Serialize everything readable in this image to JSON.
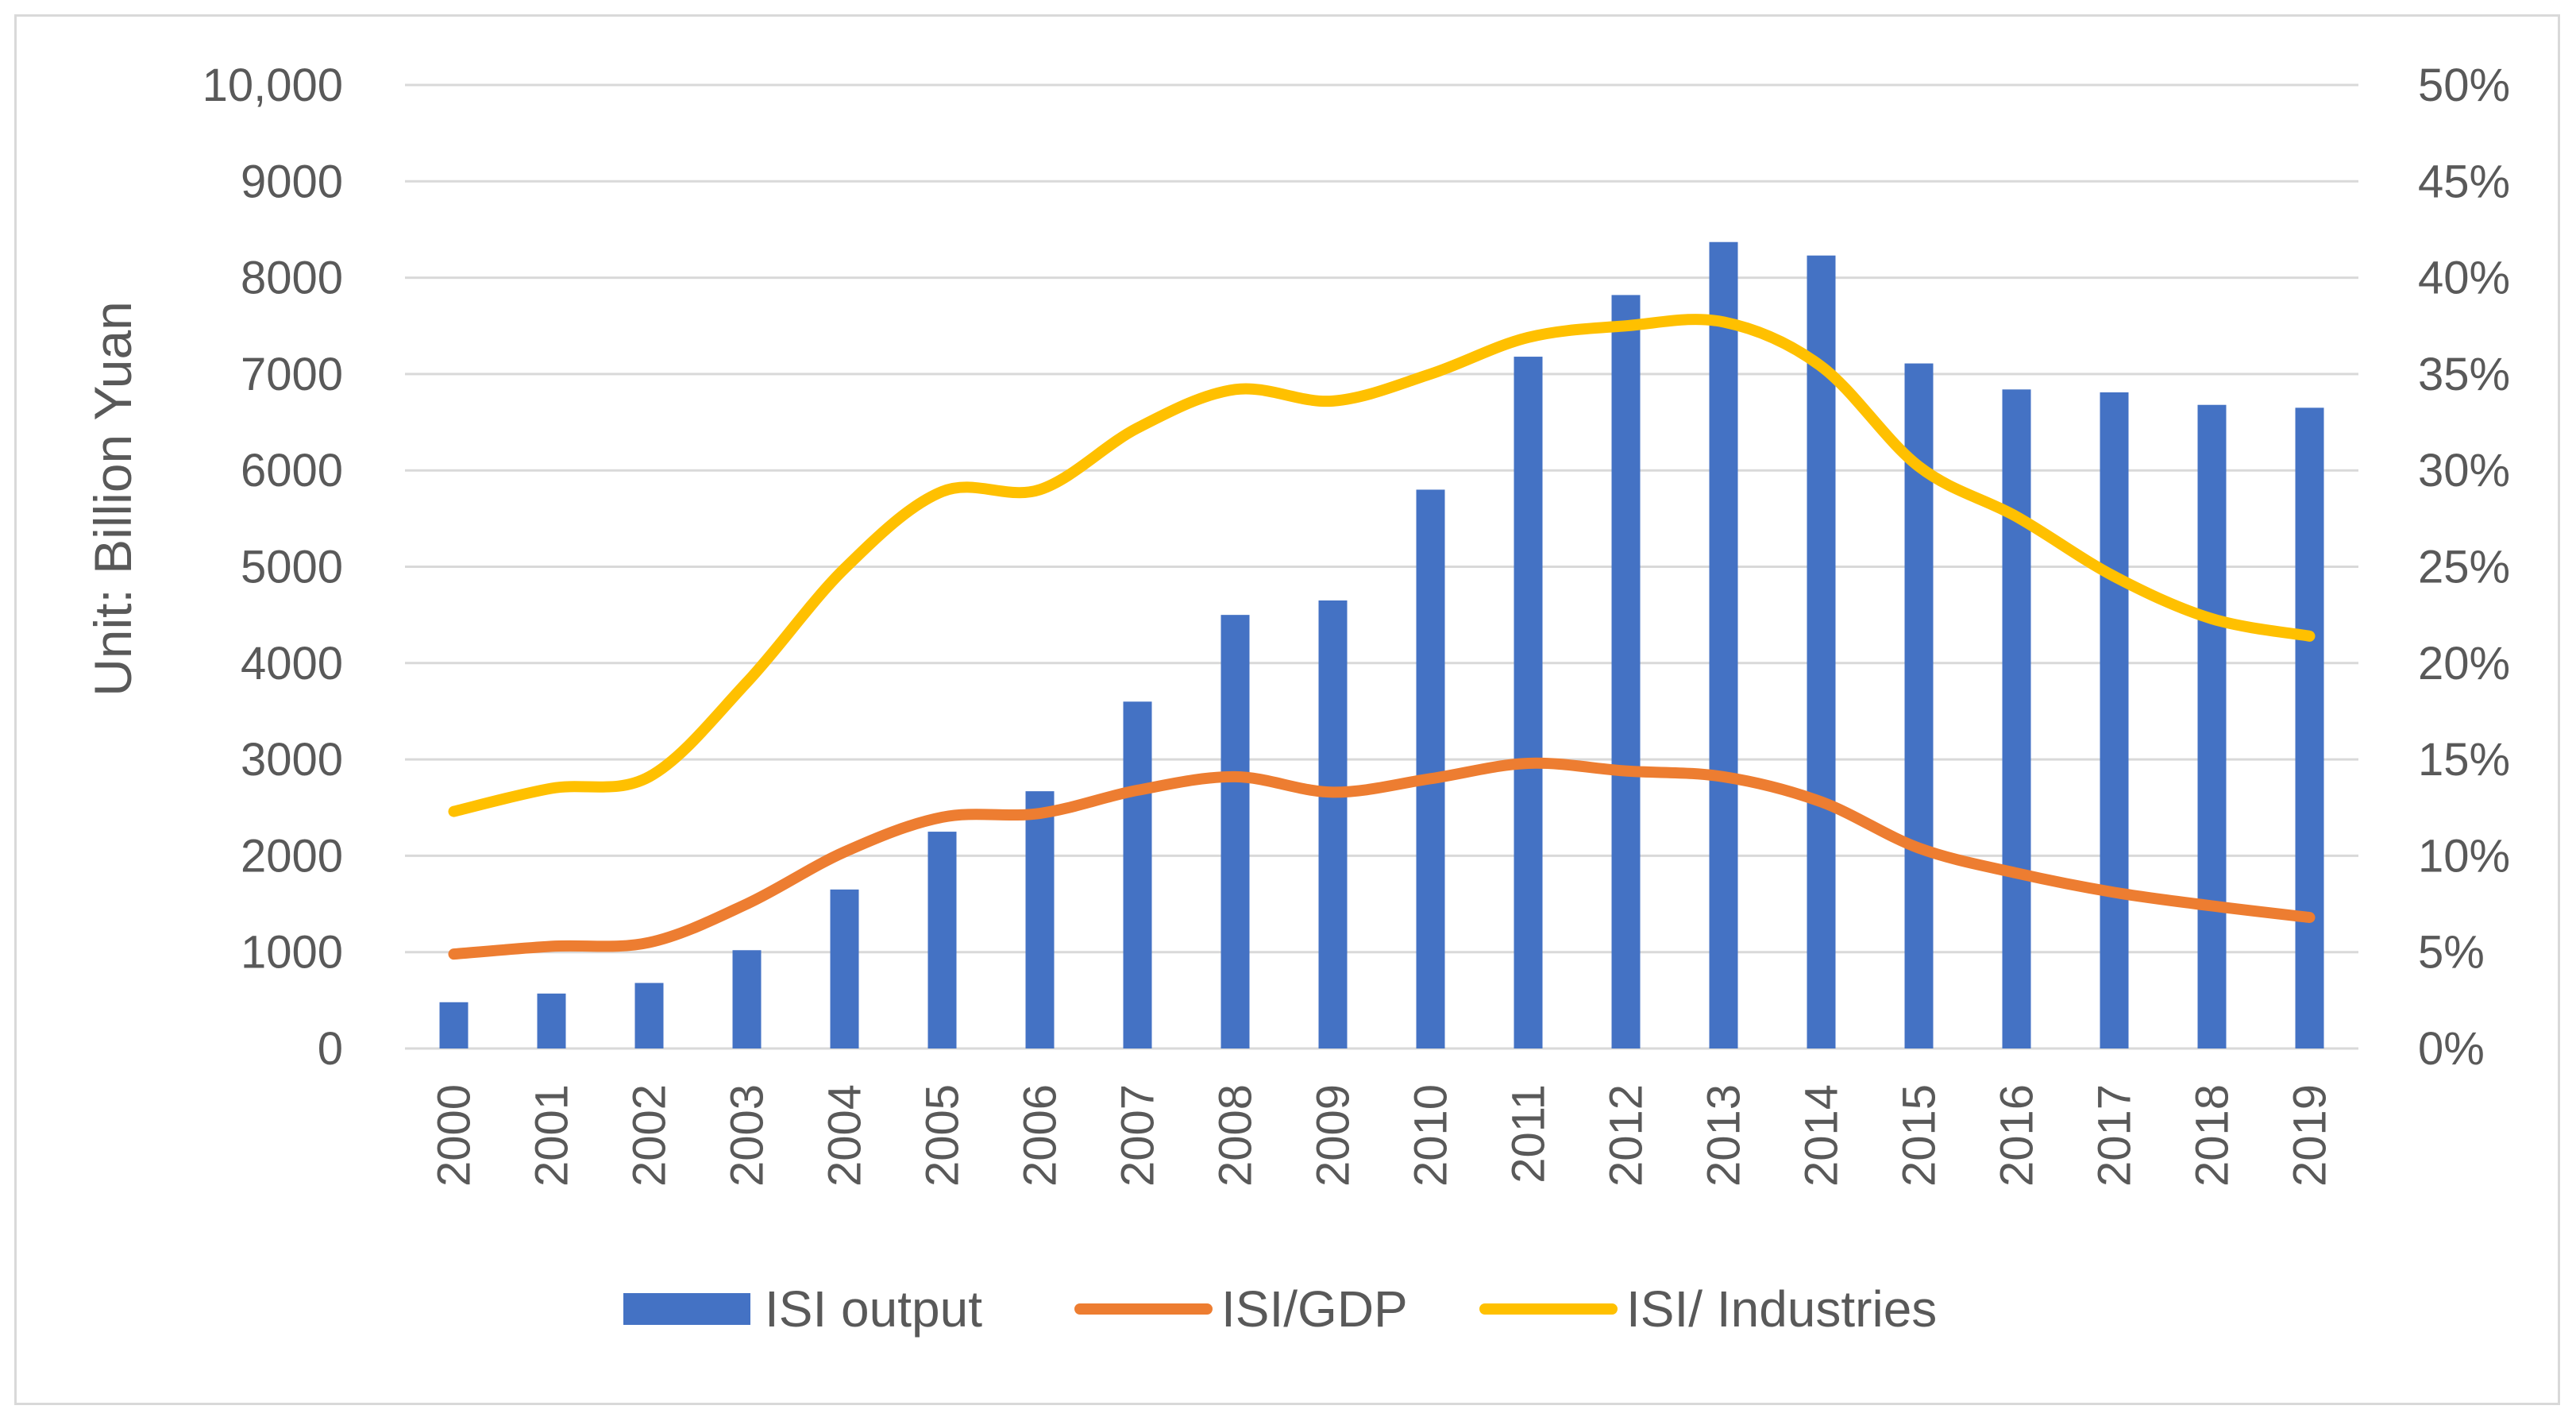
{
  "chart_data": {
    "type": "bar",
    "title": "",
    "categories": [
      "2000",
      "2001",
      "2002",
      "2003",
      "2004",
      "2005",
      "2006",
      "2007",
      "2008",
      "2009",
      "2010",
      "2011",
      "2012",
      "2013",
      "2014",
      "2015",
      "2016",
      "2017",
      "2018",
      "2019"
    ],
    "series": [
      {
        "name": "ISI output",
        "type": "bar",
        "axis": "left",
        "color": "#4472C4",
        "values": [
          480,
          570,
          680,
          1020,
          1650,
          2250,
          2670,
          3600,
          4500,
          4650,
          5800,
          7180,
          7820,
          8370,
          8230,
          7110,
          6840,
          6810,
          6680,
          6650
        ]
      },
      {
        "name": "ISI/GDP",
        "type": "line",
        "axis": "right",
        "color": "#ED7D31",
        "values": [
          0.049,
          0.053,
          0.055,
          0.075,
          0.102,
          0.12,
          0.122,
          0.134,
          0.141,
          0.133,
          0.14,
          0.148,
          0.144,
          0.141,
          0.128,
          0.104,
          0.091,
          0.081,
          0.074,
          0.068
        ]
      },
      {
        "name": "ISI/ Industries",
        "type": "line",
        "axis": "right",
        "color": "#FFC000",
        "values": [
          0.123,
          0.135,
          0.141,
          0.19,
          0.249,
          0.289,
          0.29,
          0.322,
          0.342,
          0.336,
          0.35,
          0.369,
          0.375,
          0.377,
          0.354,
          0.302,
          0.276,
          0.245,
          0.223,
          0.214
        ]
      }
    ],
    "ylabel": "Unit: Billion Yuan",
    "ylim": [
      0,
      10000
    ],
    "y_ticks": [
      "0",
      "1000",
      "2000",
      "3000",
      "4000",
      "5000",
      "6000",
      "7000",
      "8000",
      "9000",
      "10,000"
    ],
    "y2lim": [
      0,
      0.5
    ],
    "y2_ticks": [
      "0%",
      "5%",
      "10%",
      "15%",
      "20%",
      "25%",
      "30%",
      "35%",
      "40%",
      "45%",
      "50%"
    ],
    "grid": true,
    "legend_position": "bottom"
  }
}
